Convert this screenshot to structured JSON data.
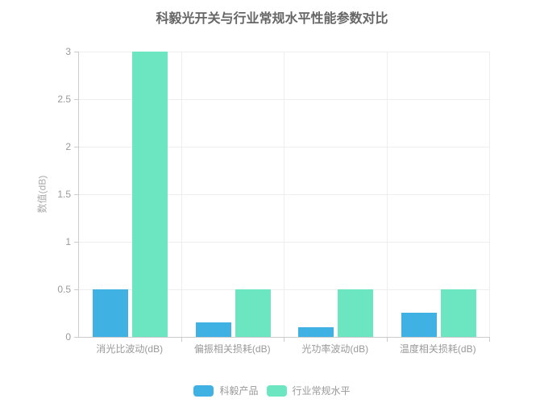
{
  "chart_data": {
    "type": "bar",
    "title": "科毅光开关与行业常规水平性能参数对比",
    "ylabel": "数值(dB)",
    "xlabel": "",
    "categories": [
      "消光比波动(dB)",
      "偏振相关损耗(dB)",
      "光功率波动(dB)",
      "温度相关损耗(dB)"
    ],
    "series": [
      {
        "name": "科毅产品",
        "color": "#3fb1e3",
        "values": [
          0.5,
          0.15,
          0.1,
          0.25
        ]
      },
      {
        "name": "行业常规水平",
        "color": "#6be6c1",
        "values": [
          3,
          0.5,
          0.5,
          0.5
        ]
      }
    ],
    "ylim": [
      0,
      3
    ],
    "yticks": [
      0,
      0.5,
      1,
      1.5,
      2,
      2.5,
      3
    ],
    "grid": true,
    "legend_position": "bottom",
    "styles": {
      "background": "#ffffff",
      "title_color": "#666666",
      "axis_line_color": "#cccccc",
      "grid_line_color": "#eeeeee",
      "tick_label_color": "#999999",
      "axis_name_color": "#aaaaaa",
      "legend_text_color": "#999999"
    }
  }
}
